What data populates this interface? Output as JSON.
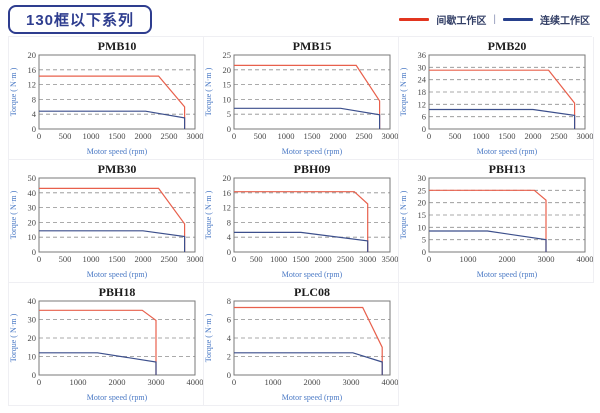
{
  "header": {
    "title": "130框以下系列",
    "separator": "|",
    "legend": [
      {
        "label": "间歇工作区",
        "color": "#e2351f"
      },
      {
        "label": "连续工作区",
        "color": "#27408c"
      }
    ],
    "legend_position": "top-right"
  },
  "colors": {
    "intermittent_line": "#e8604c",
    "continuous_line": "#3c4f8c",
    "grid_line": "#8f8f8f",
    "plot_border": "#7a7a7a",
    "axis_label": "#4a79c5",
    "accent_navy": "#2e3d8f"
  },
  "chart_data": [
    {
      "type": "line",
      "title": "PMB10",
      "xlabel": "Motor speed (rpm)",
      "ylabel": "Torque ( N·m )",
      "xlim": [
        0,
        3000
      ],
      "xtick_step": 500,
      "ylim": [
        0,
        20
      ],
      "ytick_step": 4,
      "grid": "dashed-horizontal",
      "legend_position": "none",
      "series": [
        {
          "name": "间歇工作区",
          "color": "#e8604c",
          "points": [
            [
              0,
              14.3
            ],
            [
              2300,
              14.3
            ],
            [
              2800,
              6
            ],
            [
              2800,
              0
            ]
          ]
        },
        {
          "name": "连续工作区",
          "color": "#3c4f8c",
          "points": [
            [
              0,
              4.8
            ],
            [
              2050,
              4.8
            ],
            [
              2800,
              3
            ],
            [
              2800,
              0
            ]
          ]
        }
      ]
    },
    {
      "type": "line",
      "title": "PMB15",
      "xlabel": "Motor speed (rpm)",
      "ylabel": "Torque ( N·m )",
      "xlim": [
        0,
        3000
      ],
      "xtick_step": 500,
      "ylim": [
        0,
        25
      ],
      "ytick_step": 5,
      "grid": "dashed-horizontal",
      "legend_position": "none",
      "series": [
        {
          "name": "间歇工作区",
          "color": "#e8604c",
          "points": [
            [
              0,
              21.5
            ],
            [
              2350,
              21.5
            ],
            [
              2800,
              9.5
            ],
            [
              2800,
              0
            ]
          ]
        },
        {
          "name": "连续工作区",
          "color": "#3c4f8c",
          "points": [
            [
              0,
              7
            ],
            [
              2050,
              7
            ],
            [
              2800,
              4.8
            ],
            [
              2800,
              0
            ]
          ]
        }
      ]
    },
    {
      "type": "line",
      "title": "PMB20",
      "xlabel": "Motor speed (rpm)",
      "ylabel": "Torque ( N·m )",
      "xlim": [
        0,
        3000
      ],
      "xtick_step": 500,
      "ylim": [
        0,
        36
      ],
      "ytick_step": 6,
      "grid": "dashed-horizontal",
      "legend_position": "none",
      "series": [
        {
          "name": "间歇工作区",
          "color": "#e8604c",
          "points": [
            [
              0,
              28.6
            ],
            [
              2300,
              28.6
            ],
            [
              2800,
              12.6
            ],
            [
              2800,
              0
            ]
          ]
        },
        {
          "name": "连续工作区",
          "color": "#3c4f8c",
          "points": [
            [
              0,
              9.5
            ],
            [
              2000,
              9.5
            ],
            [
              2800,
              6.6
            ],
            [
              2800,
              0
            ]
          ]
        }
      ]
    },
    {
      "type": "line",
      "title": "PMB30",
      "xlabel": "Motor speed (rpm)",
      "ylabel": "Torque ( N·m )",
      "xlim": [
        0,
        3000
      ],
      "xtick_step": 500,
      "ylim": [
        0,
        50
      ],
      "ytick_step": 10,
      "grid": "dashed-horizontal",
      "legend_position": "none",
      "series": [
        {
          "name": "间歇工作区",
          "color": "#e8604c",
          "points": [
            [
              0,
              43
            ],
            [
              2300,
              43
            ],
            [
              2800,
              19
            ],
            [
              2800,
              0
            ]
          ]
        },
        {
          "name": "连续工作区",
          "color": "#3c4f8c",
          "points": [
            [
              0,
              14.3
            ],
            [
              2000,
              14.3
            ],
            [
              2800,
              10.5
            ],
            [
              2800,
              0
            ]
          ]
        }
      ]
    },
    {
      "type": "line",
      "title": "PBH09",
      "xlabel": "Motor speed (rpm)",
      "ylabel": "Torque ( N·m )",
      "xlim": [
        0,
        3500
      ],
      "xtick_step": 500,
      "ylim": [
        0,
        20
      ],
      "ytick_step": 4,
      "grid": "dashed-horizontal",
      "legend_position": "none",
      "series": [
        {
          "name": "间歇工作区",
          "color": "#e8604c",
          "points": [
            [
              0,
              16.3
            ],
            [
              2700,
              16.3
            ],
            [
              3000,
              13
            ],
            [
              3000,
              0
            ]
          ]
        },
        {
          "name": "连续工作区",
          "color": "#3c4f8c",
          "points": [
            [
              0,
              5.3
            ],
            [
              1500,
              5.3
            ],
            [
              3000,
              3
            ],
            [
              3000,
              0
            ]
          ]
        }
      ]
    },
    {
      "type": "line",
      "title": "PBH13",
      "xlabel": "Motor speed (rpm)",
      "ylabel": "Torque ( N·m )",
      "xlim": [
        0,
        4000
      ],
      "xtick_step": 1000,
      "ylim": [
        0,
        30
      ],
      "ytick_step": 5,
      "grid": "dashed-horizontal",
      "legend_position": "none",
      "series": [
        {
          "name": "间歇工作区",
          "color": "#e8604c",
          "points": [
            [
              0,
              25
            ],
            [
              2700,
              25
            ],
            [
              3000,
              21
            ],
            [
              3000,
              0
            ]
          ]
        },
        {
          "name": "连续工作区",
          "color": "#3c4f8c",
          "points": [
            [
              0,
              8.5
            ],
            [
              1500,
              8.5
            ],
            [
              3000,
              5
            ],
            [
              3000,
              0
            ]
          ]
        }
      ]
    },
    {
      "type": "line",
      "title": "PBH18",
      "xlabel": "Motor speed (rpm)",
      "ylabel": "Torque ( N·m )",
      "xlim": [
        0,
        4000
      ],
      "xtick_step": 1000,
      "ylim": [
        0,
        40
      ],
      "ytick_step": 10,
      "grid": "dashed-horizontal",
      "legend_position": "none",
      "series": [
        {
          "name": "间歇工作区",
          "color": "#e8604c",
          "points": [
            [
              0,
              35
            ],
            [
              2650,
              35
            ],
            [
              3000,
              29.5
            ],
            [
              3000,
              0
            ]
          ]
        },
        {
          "name": "连续工作区",
          "color": "#3c4f8c",
          "points": [
            [
              0,
              12
            ],
            [
              1500,
              12
            ],
            [
              3000,
              7
            ],
            [
              3000,
              0
            ]
          ]
        }
      ]
    },
    {
      "type": "line",
      "title": "PLC08",
      "xlabel": "Motor speed (rpm)",
      "ylabel": "Torque ( N·m )",
      "xlim": [
        0,
        4000
      ],
      "xtick_step": 1000,
      "ylim": [
        0,
        8
      ],
      "ytick_step": 2,
      "grid": "dashed-horizontal",
      "legend_position": "none",
      "series": [
        {
          "name": "间歇工作区",
          "color": "#e8604c",
          "points": [
            [
              0,
              7.3
            ],
            [
              3300,
              7.3
            ],
            [
              3800,
              3
            ],
            [
              3800,
              0
            ]
          ]
        },
        {
          "name": "连续工作区",
          "color": "#3c4f8c",
          "points": [
            [
              0,
              2.4
            ],
            [
              3050,
              2.4
            ],
            [
              3800,
              1.4
            ],
            [
              3800,
              0
            ]
          ]
        }
      ]
    }
  ]
}
